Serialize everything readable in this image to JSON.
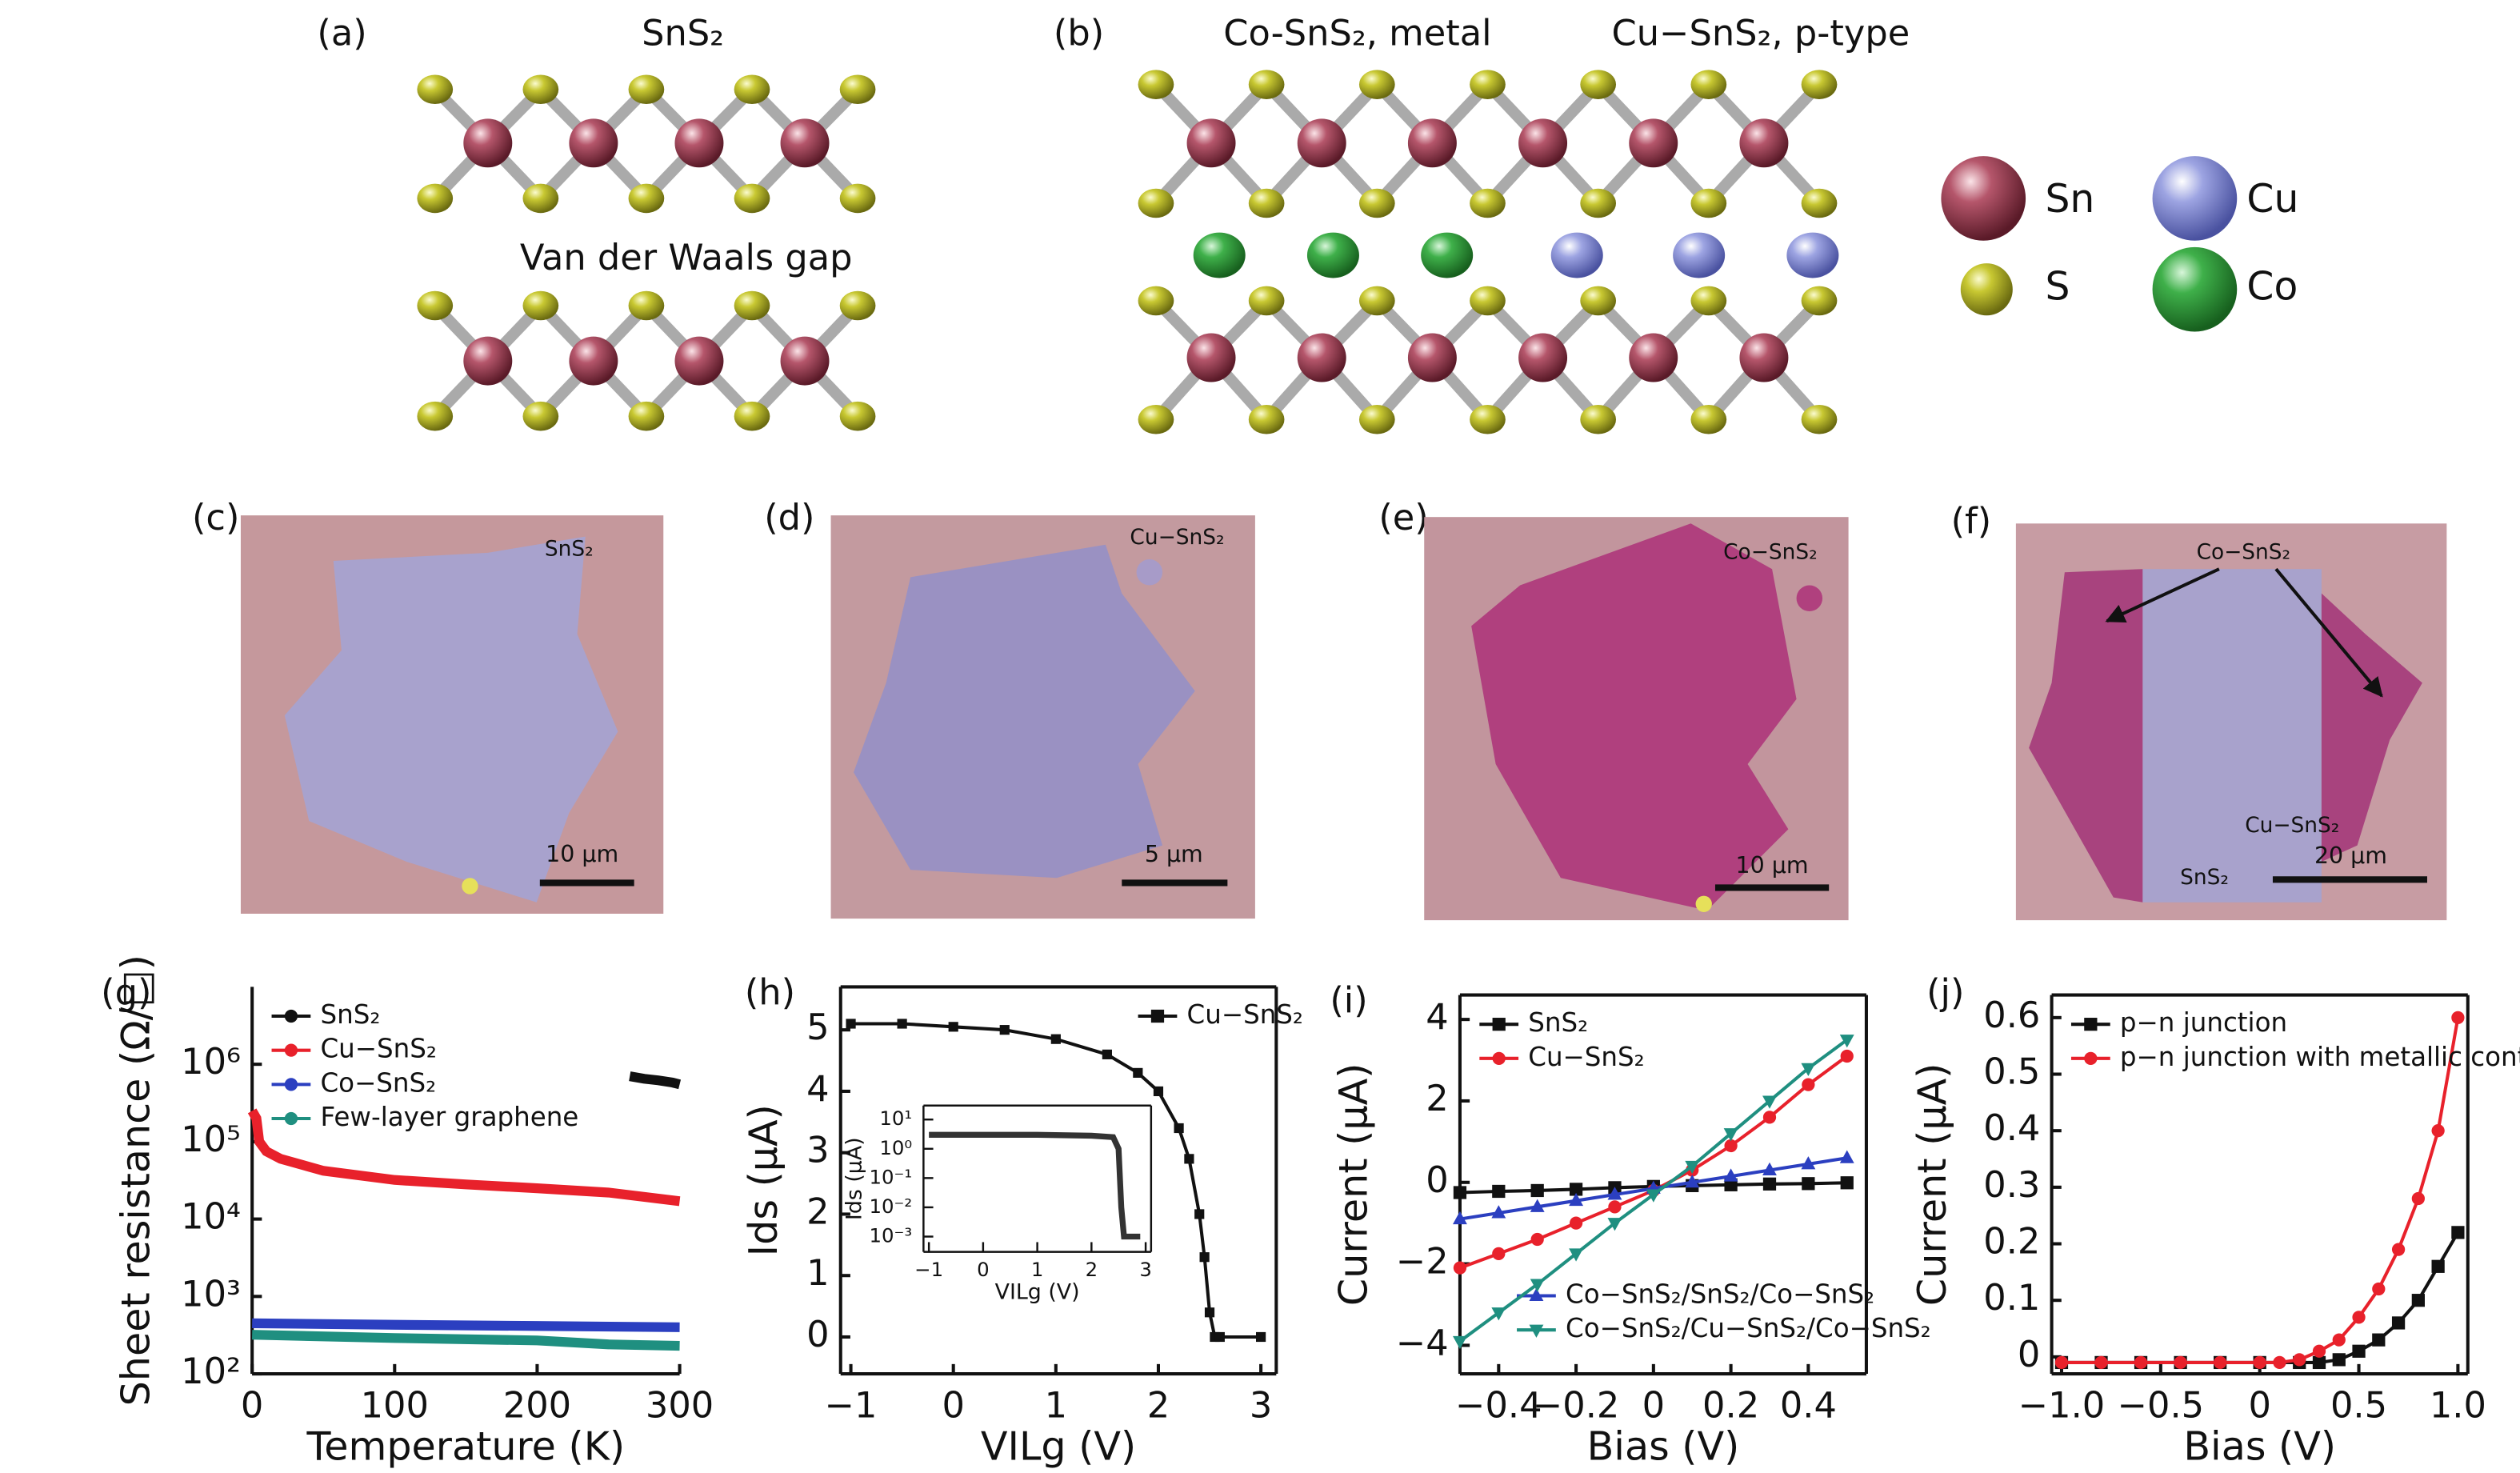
{
  "panels": {
    "a": {
      "label": "(a)",
      "title": "SnS₂",
      "gap": "Van der Waals gap"
    },
    "b": {
      "label": "(b)",
      "left": "Co-SnS₂, metal",
      "right": "Cu−SnS₂, p-type"
    },
    "legend": [
      "Sn",
      "Cu",
      "S",
      "Co"
    ],
    "c": {
      "label": "(c)",
      "name": "SnS₂",
      "scale": "10 μm"
    },
    "d": {
      "label": "(d)",
      "name": "Cu−SnS₂",
      "scale": "5 μm"
    },
    "e": {
      "label": "(e)",
      "name": "Co−SnS₂",
      "scale": "10 μm"
    },
    "f": {
      "label": "(f)",
      "names": [
        "Co−SnS₂",
        "Cu−SnS₂",
        "SnS₂"
      ],
      "scale": "20 μm"
    }
  },
  "chart_data": [
    {
      "type": "line",
      "label": "(g)",
      "xlabel": "Temperature (K)",
      "ylabel": "Sheet resistance (Ω/□)",
      "log_y": true,
      "legend": "upper left",
      "xlim": [
        0,
        300
      ],
      "ylim": [
        100,
        10000000
      ],
      "xticks": [
        0,
        100,
        200,
        300
      ],
      "yticks": [
        {
          "value": 100,
          "label": "10²"
        },
        {
          "value": 1000,
          "label": "10³"
        },
        {
          "value": 10000,
          "label": "10⁴"
        },
        {
          "value": 100000,
          "label": "10⁵"
        },
        {
          "value": 1000000,
          "label": "10⁶"
        }
      ],
      "series": [
        {
          "name": "SnS₂",
          "color": "#111111",
          "x": [
            265,
            275,
            285,
            295,
            300
          ],
          "values": [
            700000,
            650000,
            620000,
            580000,
            550000
          ]
        },
        {
          "name": "Cu−SnS₂",
          "color": "#e8212b",
          "x": [
            0,
            3,
            5,
            10,
            20,
            50,
            100,
            150,
            200,
            250,
            300
          ],
          "values": [
            250000,
            200000,
            100000,
            75000,
            60000,
            42000,
            32000,
            28000,
            25000,
            22000,
            17000
          ]
        },
        {
          "name": "Co−SnS₂",
          "color": "#2b3fc0",
          "x": [
            0,
            100,
            200,
            300
          ],
          "values": [
            450,
            430,
            415,
            400
          ]
        },
        {
          "name": "Few-layer graphene",
          "color": "#1f8f80",
          "x": [
            0,
            100,
            200,
            250,
            300
          ],
          "values": [
            320,
            290,
            270,
            240,
            230
          ]
        }
      ]
    },
    {
      "type": "line",
      "label": "(h)",
      "xlabel": "VILg (V)",
      "ylabel": "Ids (μA)",
      "legend": "upper right",
      "xlim": [
        -1.1,
        3.15
      ],
      "ylim": [
        -0.6,
        5.7
      ],
      "xticks": [
        {
          "value": -1,
          "label": "−1"
        },
        0,
        1,
        2,
        3
      ],
      "yticks": [
        0,
        1,
        2,
        3,
        4,
        5
      ],
      "series": [
        {
          "name": "Cu−SnS₂",
          "color": "#111111",
          "marker": "square",
          "x": [
            -1,
            -0.5,
            0,
            0.5,
            1,
            1.5,
            1.8,
            2,
            2.2,
            2.3,
            2.4,
            2.45,
            2.5,
            2.55,
            2.6,
            3
          ],
          "values": [
            5.1,
            5.1,
            5.05,
            5.0,
            4.85,
            4.6,
            4.3,
            4.0,
            3.4,
            2.9,
            2.0,
            1.3,
            0.4,
            0,
            0,
            0
          ]
        }
      ],
      "inset": {
        "xlabel": "VILg (V)",
        "ylabel": "Ids (μA)",
        "log_y": true,
        "xlim": [
          -1.1,
          3.1
        ],
        "ylim": [
          0.0003,
          30
        ],
        "xticks": [
          {
            "value": -1,
            "label": "−1"
          },
          0,
          1,
          2,
          3
        ],
        "yticks": [
          {
            "value": 0.001,
            "label": "10⁻³"
          },
          {
            "value": 0.01,
            "label": "10⁻²"
          },
          {
            "value": 0.1,
            "label": "10⁻¹"
          },
          {
            "value": 1,
            "label": "10⁰"
          },
          {
            "value": 10,
            "label": "10¹"
          }
        ],
        "series": [
          {
            "color": "#333333",
            "x": [
              -1,
              0,
              1,
              2,
              2.4,
              2.5,
              2.55,
              2.6,
              2.9
            ],
            "values": [
              3,
              3,
              3,
              2.8,
              2.5,
              1,
              0.01,
              0.001,
              0.001
            ]
          }
        ]
      }
    },
    {
      "type": "line",
      "label": "(i)",
      "xlabel": "Bias (V)",
      "ylabel": "Current (μA)",
      "legend": "upper left",
      "xlim": [
        -0.5,
        0.55
      ],
      "ylim": [
        -4.7,
        4.6
      ],
      "xticks": [
        {
          "value": -0.4,
          "label": "−0.4"
        },
        {
          "value": -0.2,
          "label": "−0.2"
        },
        0,
        0.2,
        0.4
      ],
      "yticks": [
        {
          "value": -4,
          "label": "−4"
        },
        {
          "value": -2,
          "label": "−2"
        },
        0,
        2,
        4
      ],
      "series": [
        {
          "name": "SnS₂",
          "color": "#111111",
          "marker": "square",
          "x": [
            -0.5,
            -0.4,
            -0.3,
            -0.2,
            -0.1,
            0,
            0.1,
            0.2,
            0.3,
            0.4,
            0.5
          ],
          "values": [
            -0.25,
            -0.22,
            -0.2,
            -0.17,
            -0.13,
            -0.1,
            -0.08,
            -0.06,
            -0.04,
            -0.03,
            -0.01
          ]
        },
        {
          "name": "Cu−SnS₂",
          "color": "#e8212b",
          "marker": "circle",
          "x": [
            -0.5,
            -0.4,
            -0.3,
            -0.2,
            -0.1,
            0,
            0.1,
            0.2,
            0.3,
            0.4,
            0.5
          ],
          "values": [
            -2.1,
            -1.75,
            -1.4,
            -1.0,
            -0.6,
            -0.2,
            0.3,
            0.9,
            1.6,
            2.4,
            3.1
          ]
        },
        {
          "name": "Co−SnS₂/SnS₂/Co−SnS₂",
          "color": "#2b3fc0",
          "marker": "triangle",
          "legend": "lower right",
          "x": [
            -0.5,
            -0.4,
            -0.3,
            -0.2,
            -0.1,
            0,
            0.1,
            0.2,
            0.3,
            0.4,
            0.5
          ],
          "values": [
            -0.9,
            -0.75,
            -0.6,
            -0.45,
            -0.3,
            -0.15,
            0,
            0.15,
            0.3,
            0.45,
            0.6
          ]
        },
        {
          "name": "Co−SnS₂/Cu−SnS₂/Co−SnS₂",
          "color": "#1f8f80",
          "marker": "triangle-down",
          "legend": "lower right",
          "x": [
            -0.5,
            -0.4,
            -0.3,
            -0.2,
            -0.1,
            0,
            0.1,
            0.2,
            0.3,
            0.4,
            0.5
          ],
          "values": [
            -3.9,
            -3.2,
            -2.5,
            -1.75,
            -1.0,
            -0.3,
            0.4,
            1.2,
            2.0,
            2.8,
            3.5
          ]
        }
      ]
    },
    {
      "type": "line",
      "label": "(j)",
      "xlabel": "Bias (V)",
      "ylabel": "Current (μA)",
      "legend": "upper left",
      "xlim": [
        -1.05,
        1.05
      ],
      "ylim": [
        -0.03,
        0.64
      ],
      "xticks": [
        {
          "value": -1,
          "label": "−1.0"
        },
        {
          "value": -0.5,
          "label": "−0.5"
        },
        0,
        0.5,
        {
          "value": 1,
          "label": "1.0"
        }
      ],
      "yticks": [
        0,
        0.1,
        0.2,
        0.3,
        0.4,
        0.5,
        0.6
      ],
      "series": [
        {
          "name": "p−n junction",
          "color": "#111111",
          "marker": "square",
          "x": [
            -1,
            -0.8,
            -0.6,
            -0.4,
            -0.2,
            0,
            0.2,
            0.3,
            0.4,
            0.5,
            0.6,
            0.7,
            0.8,
            0.9,
            1
          ],
          "values": [
            -0.01,
            -0.01,
            -0.01,
            -0.01,
            -0.01,
            -0.01,
            -0.01,
            -0.01,
            -0.005,
            0.01,
            0.03,
            0.06,
            0.1,
            0.16,
            0.22
          ]
        },
        {
          "name": "p−n junction with metallic contact",
          "color": "#e8212b",
          "marker": "circle",
          "x": [
            -1,
            -0.8,
            -0.6,
            -0.4,
            -0.2,
            0,
            0.1,
            0.2,
            0.3,
            0.4,
            0.5,
            0.6,
            0.7,
            0.8,
            0.9,
            1
          ],
          "values": [
            -0.01,
            -0.01,
            -0.01,
            -0.01,
            -0.01,
            -0.01,
            -0.01,
            -0.005,
            0.01,
            0.03,
            0.07,
            0.12,
            0.19,
            0.28,
            0.4,
            0.6
          ]
        }
      ]
    }
  ]
}
